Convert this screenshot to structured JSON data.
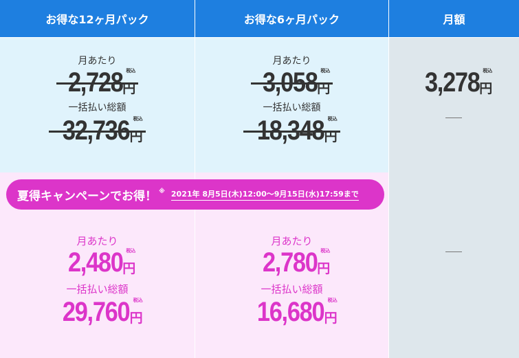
{
  "headers": {
    "pack12": "お得な12ヶ月パック",
    "pack6": "お得な6ヶ月パック",
    "monthly": "月額"
  },
  "labels": {
    "per_month": "月あたり",
    "total": "一括払い総額",
    "tax_included": "税込",
    "yen": "円"
  },
  "regular": {
    "pack12": {
      "per_month": "2,728",
      "total": "32,736"
    },
    "pack6": {
      "per_month": "3,058",
      "total": "18,348"
    },
    "monthly": {
      "per_month": "3,278",
      "total_placeholder": "—",
      "campaign_placeholder": "—"
    }
  },
  "campaign": {
    "title": "夏得キャンペーンでお得！",
    "note_mark": "※",
    "period": "2021年 8月5日(木)12:00～9月15日(水)17:59まで",
    "pack12": {
      "per_month": "2,480",
      "total": "29,760"
    },
    "pack6": {
      "per_month": "2,780",
      "total": "16,680"
    }
  },
  "colors": {
    "header_blue": "#1e7fe0",
    "regular_bg": "#e0f3fc",
    "campaign_bg": "#fce8fb",
    "monthly_bg": "#dee7ec",
    "campaign_pink": "#dc35c9"
  }
}
